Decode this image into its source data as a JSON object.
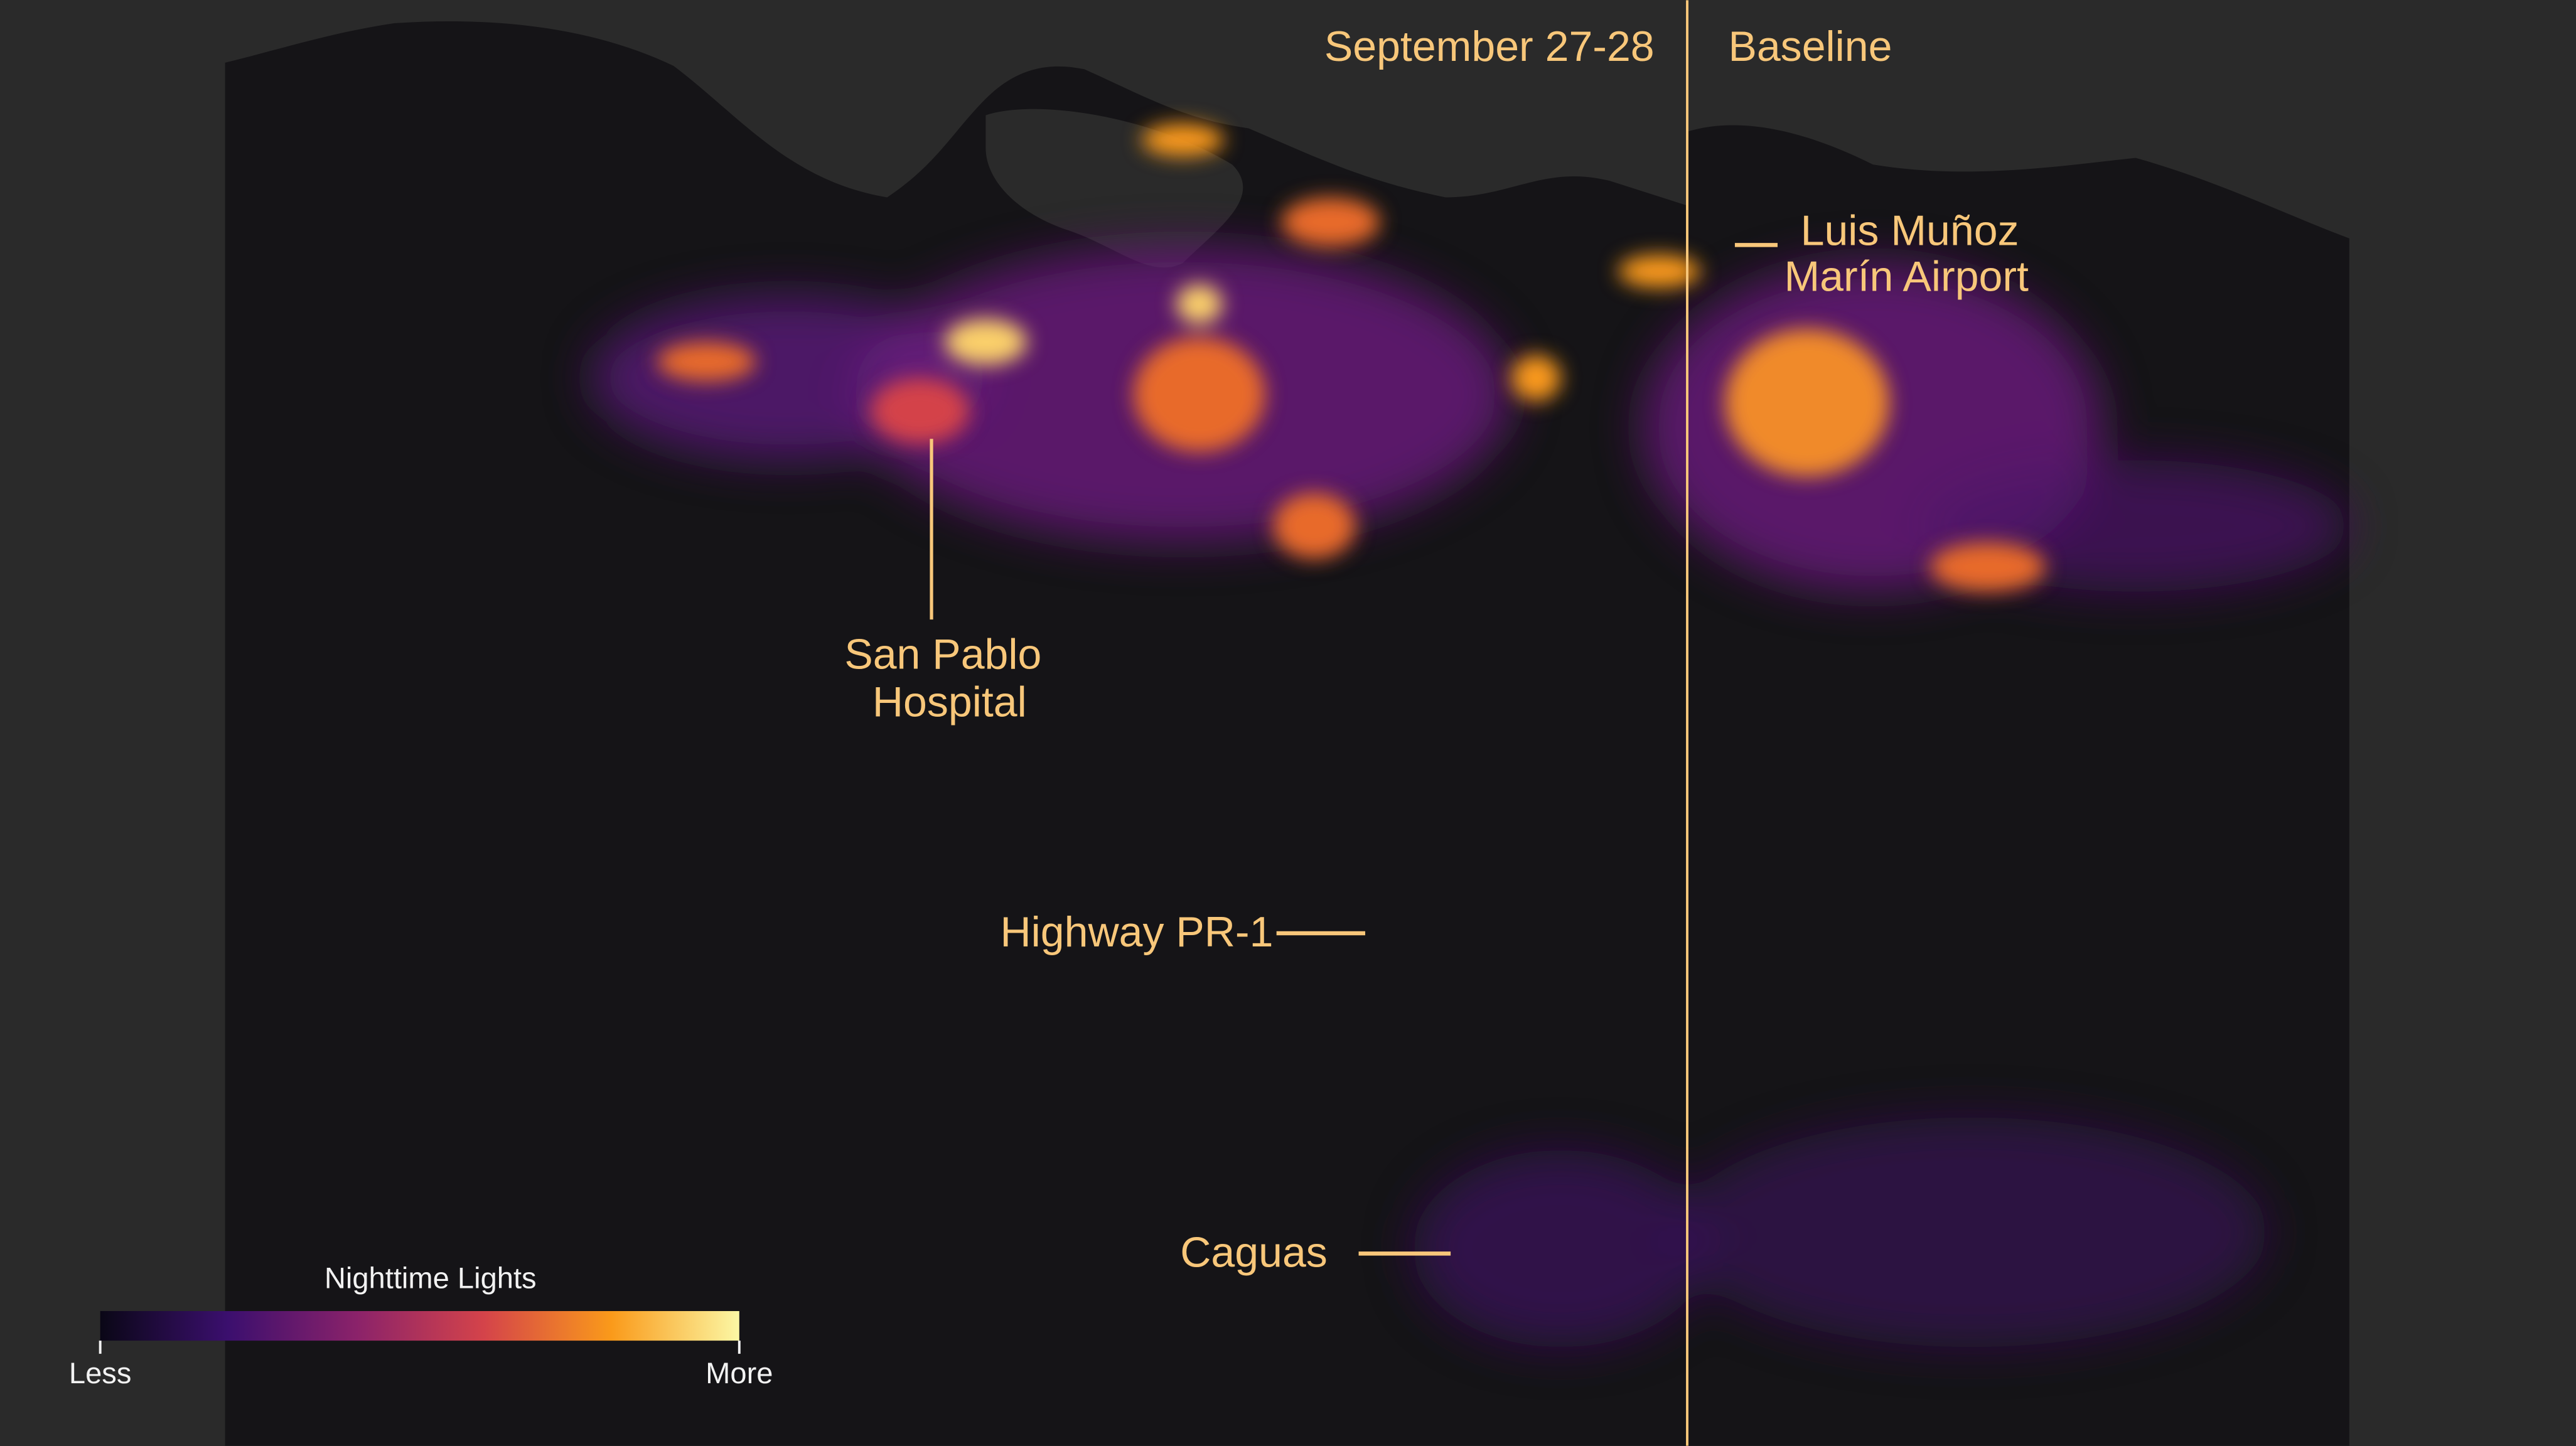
{
  "panels": {
    "left": "September 27-28",
    "right": "Baseline"
  },
  "annotations": [
    {
      "lines": [
        "Luis Muñoz",
        "Marín Airport"
      ]
    },
    {
      "lines": [
        "San  Pablo",
        "Hospital"
      ]
    },
    {
      "lines": [
        "Highway PR-1"
      ]
    },
    {
      "lines": [
        "Caguas"
      ]
    }
  ],
  "legend": {
    "title": "Nighttime Lights",
    "min": "Less",
    "max": "More"
  }
}
